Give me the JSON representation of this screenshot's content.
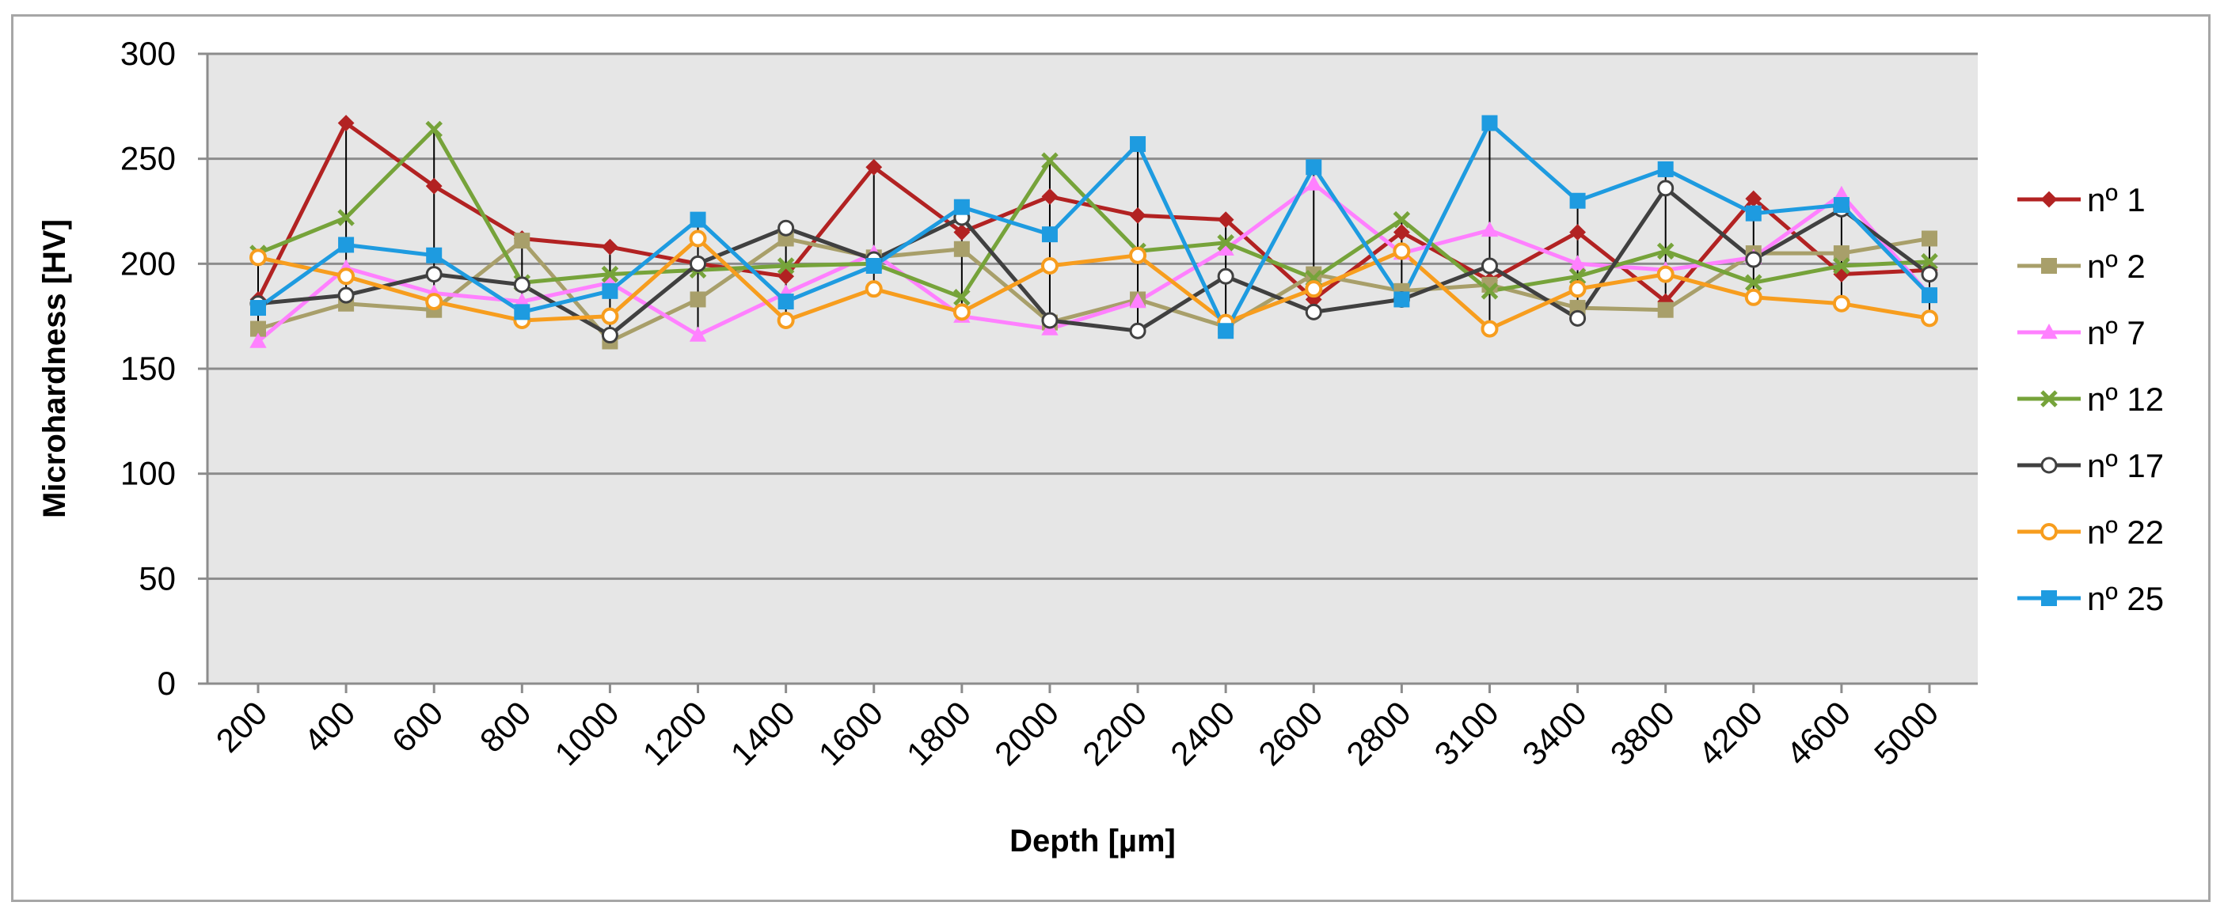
{
  "chart_data": {
    "type": "line",
    "title": "",
    "xlabel": "Depth [µm]",
    "ylabel": "Microhardness [HV]",
    "ylim": [
      0,
      300
    ],
    "yticks": [
      "0",
      "50",
      "100",
      "150",
      "200",
      "250",
      "300"
    ],
    "grid": true,
    "legend": "right",
    "categories": [
      "200",
      "400",
      "600",
      "800",
      "1000",
      "1200",
      "1400",
      "1600",
      "1800",
      "2000",
      "2200",
      "2400",
      "2600",
      "2800",
      "3100",
      "3400",
      "3800",
      "4200",
      "4600",
      "5000"
    ],
    "series": [
      {
        "name": "nº 1",
        "color": "#b22222",
        "marker": "diamond",
        "values": [
          183,
          267,
          237,
          212,
          208,
          200,
          194,
          246,
          215,
          232,
          223,
          221,
          183,
          215,
          192,
          215,
          182,
          231,
          195,
          197
        ]
      },
      {
        "name": "nº 2",
        "color": "#a89f6a",
        "marker": "square",
        "values": [
          169,
          181,
          178,
          211,
          163,
          183,
          212,
          203,
          207,
          172,
          183,
          170,
          195,
          187,
          190,
          179,
          178,
          205,
          205,
          212
        ]
      },
      {
        "name": "nº 7",
        "color": "#ff80ff",
        "marker": "triangle",
        "values": [
          163,
          198,
          186,
          182,
          191,
          166,
          186,
          205,
          175,
          169,
          182,
          207,
          238,
          205,
          216,
          200,
          197,
          203,
          233,
          185
        ]
      },
      {
        "name": "nº 12",
        "color": "#76a33a",
        "marker": "x",
        "values": [
          205,
          222,
          264,
          191,
          195,
          197,
          199,
          200,
          184,
          249,
          206,
          210,
          193,
          221,
          187,
          194,
          206,
          191,
          199,
          201
        ]
      },
      {
        "name": "nº 17",
        "color": "#404040",
        "marker": "open-circle",
        "values": [
          181,
          185,
          195,
          190,
          166,
          200,
          217,
          202,
          222,
          173,
          168,
          194,
          177,
          183,
          199,
          174,
          236,
          202,
          226,
          195
        ]
      },
      {
        "name": "nº 22",
        "color": "#f79d1e",
        "marker": "circle",
        "values": [
          203,
          194,
          182,
          173,
          175,
          212,
          173,
          188,
          177,
          199,
          204,
          172,
          188,
          206,
          169,
          188,
          195,
          184,
          181,
          174
        ]
      },
      {
        "name": "nº 25",
        "color": "#1e9be0",
        "marker": "square",
        "values": [
          179,
          209,
          204,
          177,
          187,
          221,
          182,
          199,
          227,
          214,
          257,
          168,
          246,
          183,
          267,
          230,
          245,
          224,
          228,
          185
        ]
      }
    ]
  }
}
